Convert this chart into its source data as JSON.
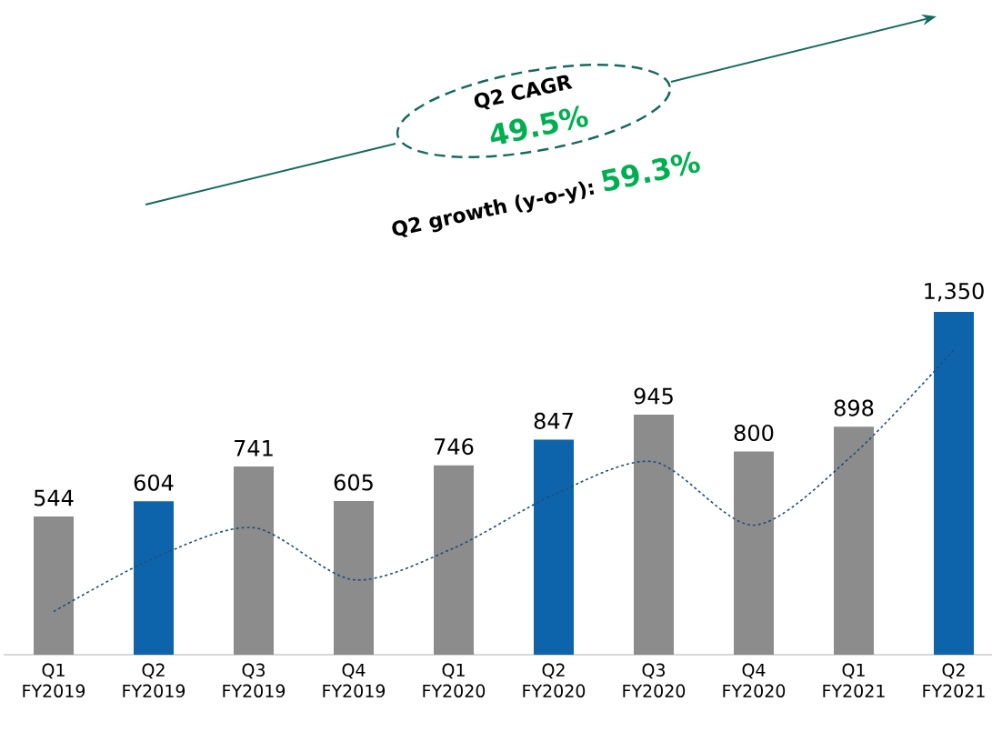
{
  "chart_data": {
    "type": "bar",
    "categories": [
      "Q1 FY2019",
      "Q2 FY2019",
      "Q3 FY2019",
      "Q4 FY2019",
      "Q1 FY2020",
      "Q2 FY2020",
      "Q3 FY2020",
      "Q4 FY2020",
      "Q1 FY2021",
      "Q2 FY2021"
    ],
    "series": [
      {
        "colors": [
          "#8c8c8c",
          "#0e64aa",
          "#8c8c8c",
          "#8c8c8c",
          "#8c8c8c",
          "#0e64aa",
          "#8c8c8c",
          "#8c8c8c",
          "#8c8c8c",
          "#0e64aa"
        ],
        "values": [
          544,
          604,
          741,
          605,
          746,
          847,
          945,
          800,
          898,
          1350
        ],
        "value_labels": [
          "544",
          "604",
          "741",
          "605",
          "746",
          "847",
          "945",
          "800",
          "898",
          "1,350"
        ]
      },
      {
        "type": "line",
        "color": "#1f4e79",
        "line_style": "dashed",
        "values": [
          170,
          380,
          500,
          295,
          420,
          630,
          760,
          510,
          790,
          1200
        ]
      }
    ],
    "annotations": [
      "Q2 CAGR",
      "49.5%",
      "Q2 growth (y-o-y):",
      "59.3%"
    ]
  }
}
